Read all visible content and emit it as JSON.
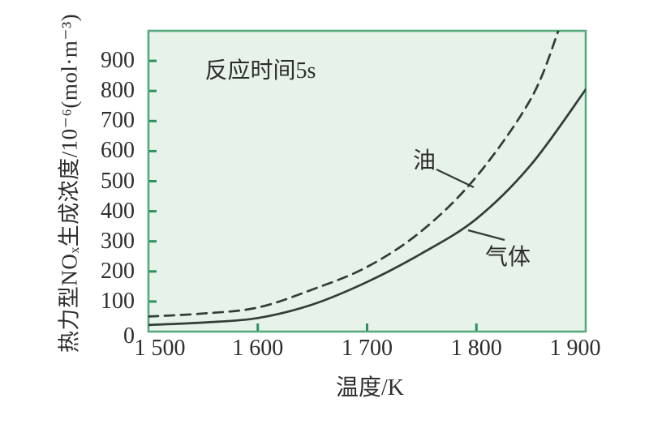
{
  "chart_data": {
    "type": "line",
    "title": "",
    "annotation": "反应时间5s",
    "xlabel": "温度/K",
    "ylabel": "热力型NOₓ生成浓度/10⁻⁶(mol·m⁻³)",
    "xlim": [
      1500,
      1900
    ],
    "ylim": [
      0,
      1000
    ],
    "grid": false,
    "legend": "inline-curve-labels",
    "x_tick_values": [
      1500,
      1600,
      1700,
      1800,
      1900
    ],
    "x_tick_labels": [
      "1 500",
      "1 600",
      "1 700",
      "1 800",
      "1 900"
    ],
    "y_tick_values": [
      0,
      100,
      200,
      300,
      400,
      500,
      600,
      700,
      800,
      900
    ],
    "y_tick_labels": [
      "0",
      "100",
      "200",
      "300",
      "400",
      "500",
      "600",
      "700",
      "800",
      "900"
    ],
    "series": [
      {
        "name": "油",
        "line_style": "dashed",
        "color": "#2f3e37",
        "x": [
          1500,
          1550,
          1600,
          1650,
          1700,
          1750,
          1800,
          1850,
          1875
        ],
        "values": [
          50,
          60,
          80,
          140,
          215,
          335,
          515,
          775,
          1000
        ]
      },
      {
        "name": "气体",
        "line_style": "solid",
        "color": "#2f3e37",
        "x": [
          1500,
          1550,
          1600,
          1650,
          1700,
          1750,
          1800,
          1850,
          1900
        ],
        "values": [
          22,
          30,
          45,
          90,
          165,
          260,
          375,
          555,
          805
        ]
      }
    ],
    "colors": {
      "plot_background": "#e7f2e8",
      "plot_border": "#55aa7e",
      "tick_mark": "#2e8f63",
      "curve": "#2f3e37",
      "text": "#2d2d2d",
      "figure_background": "#ffffff"
    }
  }
}
